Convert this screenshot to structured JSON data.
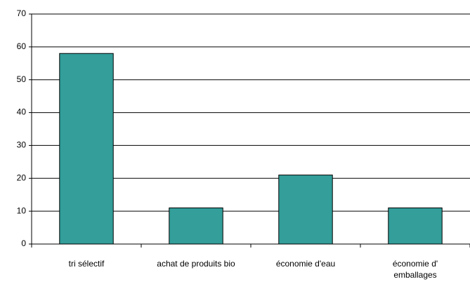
{
  "chart_data": {
    "type": "bar",
    "categories": [
      "tri sélectif",
      "achat de produits bio",
      "économie d'eau",
      "économie d' emballages"
    ],
    "values": [
      58,
      11,
      21,
      11
    ],
    "color": "#339e9a",
    "ylim": [
      0,
      70
    ],
    "yticks": [
      0,
      10,
      20,
      30,
      40,
      50,
      60,
      70
    ],
    "grid": true
  }
}
